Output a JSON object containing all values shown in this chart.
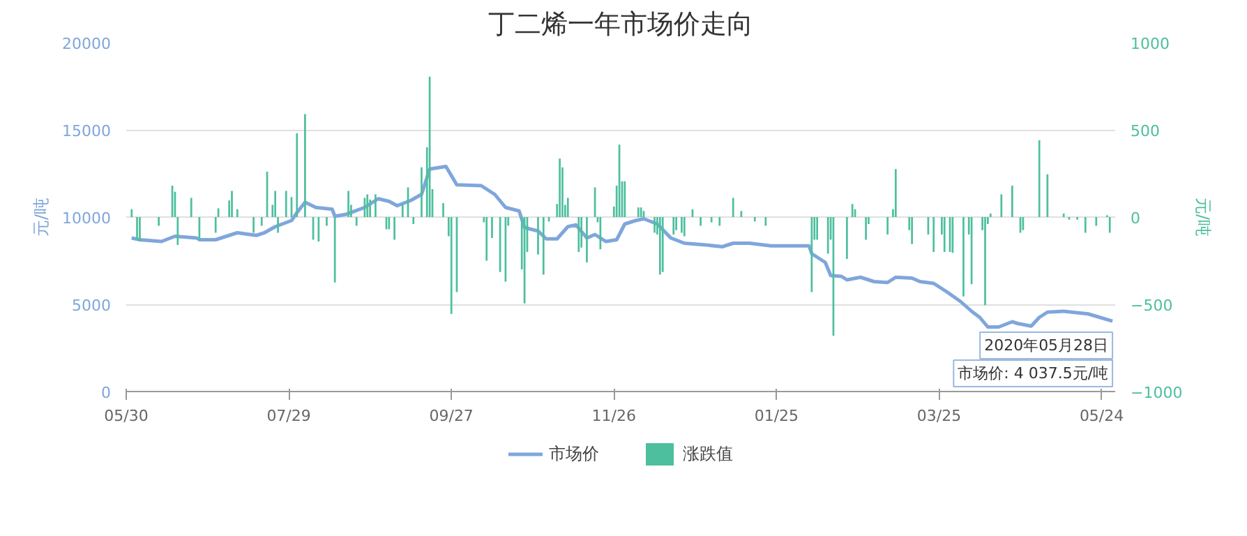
{
  "chart_data": {
    "type": "line",
    "title": "丁二烯一年市场价走向",
    "ylabel": "元/吨",
    "y2label": "元/吨",
    "xlim": [
      "2019-05-30",
      "2020-05-29"
    ],
    "xticks": [
      {
        "value": "2019-05-30",
        "label": "05/30"
      },
      {
        "value": "2019-07-29",
        "label": "07/29"
      },
      {
        "value": "2019-09-27",
        "label": "09/27"
      },
      {
        "value": "2019-11-26",
        "label": "11/26"
      },
      {
        "value": "2020-01-25",
        "label": "01/25"
      },
      {
        "value": "2020-03-25",
        "label": "03/25"
      },
      {
        "value": "2020-05-24",
        "label": "05/24"
      }
    ],
    "ylim": [
      0,
      20000
    ],
    "yticks": [
      0,
      5000,
      10000,
      15000,
      20000
    ],
    "y2lim": [
      -1000,
      1000
    ],
    "y2ticks": [
      -1000,
      -500,
      0,
      500,
      1000
    ],
    "grid": "y",
    "legend": "bottom",
    "marker": "none",
    "line_style": "solid",
    "annotations": [
      {
        "text": "2020年05月28日",
        "x": "2020-05-28",
        "y": 4037.5
      },
      {
        "text": "市场价: 4 037.5元/吨",
        "x": "2020-05-28",
        "y": 4037.5
      }
    ],
    "series": [
      {
        "name": "市场价",
        "color": "#7fa6dc",
        "x": [
          "2019-06-01",
          "2019-06-04",
          "2019-06-12",
          "2019-06-17",
          "2019-06-25",
          "2019-06-26",
          "2019-07-02",
          "2019-07-10",
          "2019-07-17",
          "2019-07-20",
          "2019-07-24",
          "2019-07-30",
          "2019-08-01",
          "2019-08-04",
          "2019-08-08",
          "2019-08-14",
          "2019-08-15",
          "2019-08-19",
          "2019-08-26",
          "2019-08-31",
          "2019-09-04",
          "2019-09-07",
          "2019-09-12",
          "2019-09-16",
          "2019-09-19",
          "2019-09-25",
          "2019-09-29",
          "2019-10-08",
          "2019-10-13",
          "2019-10-17",
          "2019-10-22",
          "2019-10-24",
          "2019-10-29",
          "2019-11-01",
          "2019-11-05",
          "2019-11-09",
          "2019-11-12",
          "2019-11-16",
          "2019-11-19",
          "2019-11-23",
          "2019-11-27",
          "2019-11-30",
          "2019-12-04",
          "2019-12-07",
          "2019-12-12",
          "2019-12-17",
          "2019-12-22",
          "2019-12-30",
          "2020-01-05",
          "2020-01-09",
          "2020-01-15",
          "2020-01-23",
          "2020-02-06",
          "2020-02-07",
          "2020-02-12",
          "2020-02-14",
          "2020-02-18",
          "2020-02-20",
          "2020-02-25",
          "2020-03-01",
          "2020-03-06",
          "2020-03-09",
          "2020-03-15",
          "2020-03-18",
          "2020-03-23",
          "2020-03-28",
          "2020-04-02",
          "2020-04-06",
          "2020-04-09",
          "2020-04-12",
          "2020-04-16",
          "2020-04-21",
          "2020-04-23",
          "2020-04-28",
          "2020-05-01",
          "2020-05-04",
          "2020-05-10",
          "2020-05-19",
          "2020-05-28"
        ],
        "values": [
          8800,
          8700,
          8600,
          8900,
          8800,
          8700,
          8700,
          9100,
          8950,
          9100,
          9450,
          9800,
          10250,
          10850,
          10550,
          10450,
          10050,
          10150,
          10550,
          11050,
          10900,
          10650,
          10950,
          11300,
          12750,
          12900,
          11850,
          11800,
          11300,
          10550,
          10350,
          9400,
          9200,
          8750,
          8750,
          9450,
          9550,
          8800,
          9000,
          8600,
          8700,
          9600,
          9800,
          9900,
          9600,
          8800,
          8500,
          8400,
          8300,
          8500,
          8500,
          8350,
          8350,
          7900,
          7400,
          6650,
          6600,
          6400,
          6550,
          6300,
          6250,
          6550,
          6500,
          6300,
          6200,
          5700,
          5150,
          4600,
          4250,
          3700,
          3700,
          4000,
          3900,
          3750,
          4250,
          4550,
          4600,
          4450,
          4037.5
        ]
      },
      {
        "name": "涨跌值",
        "type": "bar",
        "axis": "y2",
        "color": "#4dbf9e",
        "x": [
          "2019-06-01",
          "2019-06-03",
          "2019-06-04",
          "2019-06-11",
          "2019-06-16",
          "2019-06-17",
          "2019-06-18",
          "2019-06-23",
          "2019-06-26",
          "2019-07-02",
          "2019-07-03",
          "2019-07-07",
          "2019-07-08",
          "2019-07-10",
          "2019-07-16",
          "2019-07-19",
          "2019-07-21",
          "2019-07-23",
          "2019-07-24",
          "2019-07-25",
          "2019-07-28",
          "2019-07-30",
          "2019-08-01",
          "2019-08-04",
          "2019-08-07",
          "2019-08-09",
          "2019-08-12",
          "2019-08-15",
          "2019-08-20",
          "2019-08-21",
          "2019-08-23",
          "2019-08-26",
          "2019-08-27",
          "2019-08-28",
          "2019-08-30",
          "2019-09-03",
          "2019-09-04",
          "2019-09-06",
          "2019-09-09",
          "2019-09-11",
          "2019-09-13",
          "2019-09-16",
          "2019-09-18",
          "2019-09-19",
          "2019-09-20",
          "2019-09-24",
          "2019-09-26",
          "2019-09-27",
          "2019-09-29",
          "2019-10-09",
          "2019-10-10",
          "2019-10-12",
          "2019-10-15",
          "2019-10-17",
          "2019-10-18",
          "2019-10-23",
          "2019-10-24",
          "2019-10-25",
          "2019-10-29",
          "2019-10-31",
          "2019-11-02",
          "2019-11-05",
          "2019-11-06",
          "2019-11-07",
          "2019-11-08",
          "2019-11-09",
          "2019-11-13",
          "2019-11-14",
          "2019-11-16",
          "2019-11-19",
          "2019-11-20",
          "2019-11-21",
          "2019-11-26",
          "2019-11-27",
          "2019-11-28",
          "2019-11-29",
          "2019-11-30",
          "2019-12-05",
          "2019-12-06",
          "2019-12-07",
          "2019-12-11",
          "2019-12-12",
          "2019-12-13",
          "2019-12-14",
          "2019-12-18",
          "2019-12-19",
          "2019-12-21",
          "2019-12-22",
          "2019-12-25",
          "2019-12-28",
          "2020-01-01",
          "2020-01-04",
          "2020-01-09",
          "2020-01-12",
          "2020-01-17",
          "2020-01-21",
          "2020-02-07",
          "2020-02-08",
          "2020-02-09",
          "2020-02-13",
          "2020-02-14",
          "2020-02-15",
          "2020-02-20",
          "2020-02-22",
          "2020-02-23",
          "2020-02-27",
          "2020-02-28",
          "2020-03-06",
          "2020-03-08",
          "2020-03-09",
          "2020-03-14",
          "2020-03-15",
          "2020-03-21",
          "2020-03-23",
          "2020-03-26",
          "2020-03-27",
          "2020-03-29",
          "2020-03-30",
          "2020-04-03",
          "2020-04-05",
          "2020-04-06",
          "2020-04-10",
          "2020-04-11",
          "2020-04-12",
          "2020-04-13",
          "2020-04-17",
          "2020-04-21",
          "2020-04-24",
          "2020-04-25",
          "2020-05-01",
          "2020-05-04",
          "2020-05-10",
          "2020-05-12",
          "2020-05-15",
          "2020-05-18",
          "2020-05-22",
          "2020-05-26",
          "2020-05-27"
        ],
        "values": [
          45,
          -130,
          -140,
          -50,
          180,
          145,
          -160,
          110,
          -130,
          -90,
          50,
          95,
          150,
          45,
          -90,
          -50,
          260,
          70,
          150,
          -90,
          150,
          115,
          480,
          590,
          -130,
          -140,
          -50,
          -375,
          150,
          70,
          -50,
          110,
          130,
          100,
          130,
          -70,
          -70,
          -130,
          80,
          170,
          -40,
          285,
          400,
          805,
          160,
          80,
          -110,
          -555,
          -430,
          -30,
          -250,
          -120,
          -315,
          -370,
          -50,
          -300,
          -495,
          -200,
          -215,
          -330,
          -25,
          75,
          335,
          285,
          70,
          110,
          -200,
          -175,
          -260,
          170,
          -30,
          -185,
          60,
          180,
          415,
          205,
          205,
          55,
          55,
          35,
          -90,
          -100,
          -330,
          -315,
          -100,
          -75,
          -90,
          -110,
          45,
          -50,
          -30,
          -50,
          110,
          35,
          -25,
          -50,
          -430,
          -130,
          -130,
          -210,
          -130,
          -680,
          -240,
          75,
          45,
          -130,
          -40,
          -100,
          45,
          275,
          -75,
          -155,
          -100,
          -200,
          -100,
          -200,
          -200,
          -205,
          -455,
          -100,
          -385,
          -75,
          -505,
          -40,
          20,
          130,
          180,
          -90,
          -75,
          440,
          245,
          20,
          -15,
          -15,
          -90,
          -50,
          10,
          -90
        ]
      }
    ]
  }
}
